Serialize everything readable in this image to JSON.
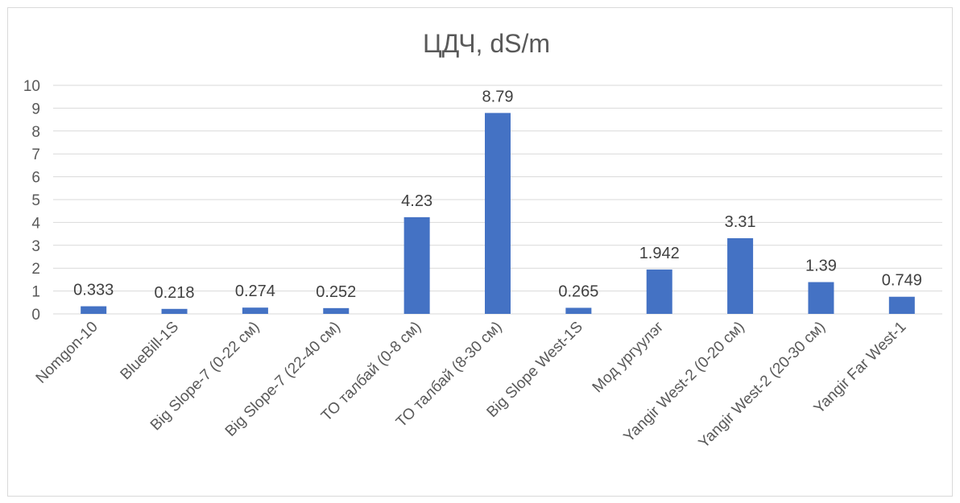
{
  "chart_data": {
    "type": "bar",
    "title": "ЦДЧ, dS/m",
    "categories": [
      "Nomgon-10",
      "BlueBill-1S",
      "Big Slope-7 (0-22 см)",
      "Big Slope-7 (22-40 см)",
      "ТО талбай (0-8 см)",
      "ТО талбай (8-30 см)",
      "Big Slope West-1S",
      "Мод ургуулэг",
      "Yangir West-2 (0-20 см)",
      "Yangir West-2 (20-30 см)",
      "Yangir Far West-1"
    ],
    "values": [
      0.333,
      0.218,
      0.274,
      0.252,
      4.23,
      8.79,
      0.265,
      1.942,
      3.31,
      1.39,
      0.749
    ],
    "data_labels": [
      "0.333",
      "0.218",
      "0.274",
      "0.252",
      "4.23",
      "8.79",
      "0.265",
      "1.942",
      "3.31",
      "1.39",
      "0.749"
    ],
    "ylim": [
      0,
      10
    ],
    "yticks": [
      "0",
      "1",
      "2",
      "3",
      "4",
      "5",
      "6",
      "7",
      "8",
      "9",
      "10"
    ],
    "xlabel": "",
    "ylabel": "",
    "grid": true,
    "legend": "none",
    "bar_color": "#4472c4"
  }
}
